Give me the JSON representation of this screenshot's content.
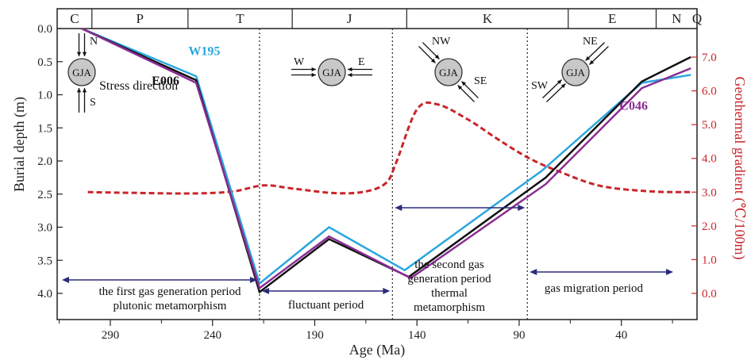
{
  "chart_data": {
    "type": "line",
    "xlabel": "Age (Ma)",
    "ylabel_left": "Burial depth (m)",
    "ylabel_right": "Geothermal gradient (℃/100m)",
    "x_reversed": true,
    "xlim": [
      316,
      3
    ],
    "ylim_left": [
      0,
      4.3
    ],
    "ylim_right": [
      7.5,
      -0.6
    ],
    "x_ticks": [
      290,
      240,
      190,
      140,
      90,
      40
    ],
    "y_ticks_left": [
      "0.0",
      "0.5",
      "1.0",
      "1.5",
      "2.0",
      "2.5",
      "3.0",
      "3.5",
      "4.0"
    ],
    "y_ticks_right": [
      "7.0",
      "6.0",
      "5.0",
      "4.0",
      "3.0",
      "2.0",
      "1.0",
      "0.0"
    ],
    "periods": [
      {
        "label": "C",
        "start": 316,
        "end": 299
      },
      {
        "label": "P",
        "start": 299,
        "end": 252
      },
      {
        "label": "T",
        "start": 252,
        "end": 201
      },
      {
        "label": "J",
        "start": 201,
        "end": 145
      },
      {
        "label": "K",
        "start": 145,
        "end": 66
      },
      {
        "label": "E",
        "start": 66,
        "end": 23
      },
      {
        "label": "N",
        "start": 23,
        "end": 3
      },
      {
        "label": "Q",
        "start": 3,
        "end": -22
      }
    ],
    "period_dividers": [
      217,
      152,
      86
    ],
    "series": [
      {
        "name": "W195",
        "color": "#2aa6df",
        "x": [
          304,
          248,
          217,
          183,
          146,
          79,
          30,
          6
        ],
        "y": [
          0.0,
          0.72,
          3.85,
          3.0,
          3.65,
          2.15,
          0.82,
          0.7
        ]
      },
      {
        "name": "E006",
        "color": "#111111",
        "x": [
          304,
          248,
          217,
          183,
          144,
          77,
          30,
          6
        ],
        "y": [
          0.0,
          0.78,
          3.98,
          3.18,
          3.75,
          2.25,
          0.8,
          0.43
        ]
      },
      {
        "name": "C046",
        "color": "#8a2c93",
        "x": [
          304,
          248,
          217,
          183,
          143,
          77,
          30,
          6
        ],
        "y": [
          0.0,
          0.82,
          3.92,
          3.14,
          3.77,
          2.35,
          0.9,
          0.6
        ]
      }
    ],
    "geothermal": {
      "color": "#c8252a",
      "style": "dashed",
      "x": [
        301,
        280,
        250,
        230,
        215,
        200,
        180,
        165,
        155,
        150,
        140,
        130,
        115,
        100,
        85,
        70,
        50,
        25,
        6
      ],
      "y": [
        3.0,
        2.98,
        2.96,
        3.02,
        3.2,
        3.1,
        2.97,
        3.02,
        3.28,
        3.9,
        5.45,
        5.6,
        5.15,
        4.55,
        4.0,
        3.6,
        3.18,
        3.02,
        3.0
      ]
    },
    "stress_glyphs": [
      {
        "center": "GJA",
        "direction_labels": [
          "N",
          "S"
        ],
        "caption": "Stress direction"
      },
      {
        "center": "GJA",
        "direction_labels": [
          "W",
          "E"
        ]
      },
      {
        "center": "GJA",
        "direction_labels": [
          "NW",
          "SE"
        ]
      },
      {
        "center": "GJA",
        "direction_labels": [
          "NE",
          "SW"
        ]
      }
    ],
    "annotations": [
      {
        "lines": [
          "the first gas generation period",
          "plutonic metamorphism"
        ],
        "from": 316,
        "to": 217
      },
      {
        "lines": [
          "fluctuant period"
        ],
        "from": 217,
        "to": 152
      },
      {
        "lines": [
          "the second gas",
          "generation period",
          "thermal",
          "metamorphism"
        ],
        "from": 152,
        "to": 86
      },
      {
        "lines": [
          "gas migration period"
        ],
        "from": 86,
        "to": 3
      }
    ],
    "grid": false,
    "legend": "inline labels"
  }
}
